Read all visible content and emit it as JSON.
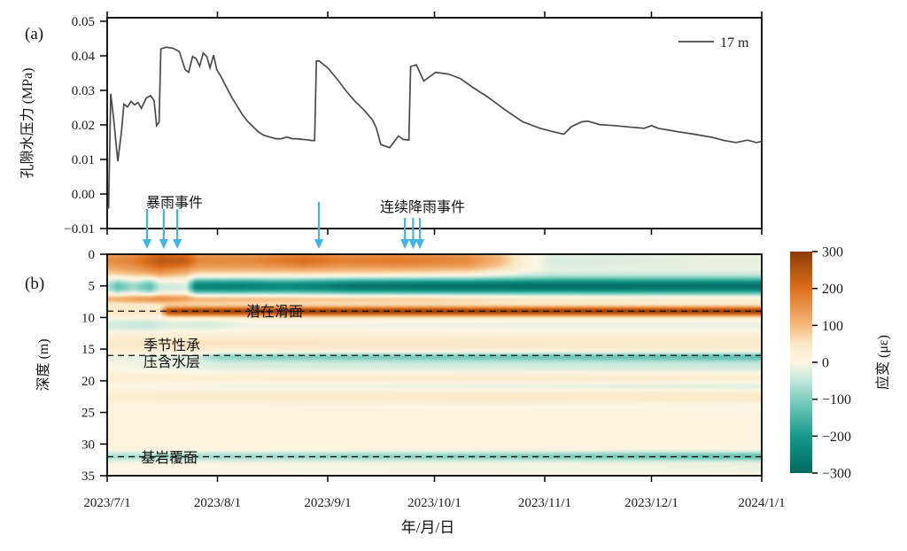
{
  "figure": {
    "background": "#ffffff"
  },
  "panel_a": {
    "label": "(a)",
    "ylabel": "孔隙水压力 (MPa)",
    "ylim": [
      -0.01,
      0.05
    ],
    "yticks": [
      {
        "v": 0.05,
        "label": "0.05"
      },
      {
        "v": 0.04,
        "label": "0.04"
      },
      {
        "v": 0.03,
        "label": "0.03"
      },
      {
        "v": 0.02,
        "label": "0.02"
      },
      {
        "v": 0.01,
        "label": "0.01"
      },
      {
        "v": 0.0,
        "label": "0.00"
      },
      {
        "v": -0.01,
        "label": "−0.01"
      }
    ],
    "legend": {
      "series_label": "17 m",
      "line_color": "#4a4a4a"
    },
    "rain_events": {
      "storm_label": "暴雨事件",
      "storm_arrow_days": [
        11.2,
        15.9,
        19.7
      ],
      "mid_arrow_days": [
        59.5
      ],
      "continuous_label": "连续降雨事件",
      "continuous_arrow_days": [
        83.7,
        86.0,
        87.9
      ],
      "arrow_color": "#3fb5e6"
    }
  },
  "panel_b": {
    "label": "(b)",
    "ylabel": "深度 (m)",
    "ylim_m": [
      0,
      35
    ],
    "yticks": [
      {
        "v": 0,
        "label": "0"
      },
      {
        "v": 5,
        "label": "5"
      },
      {
        "v": 10,
        "label": "10"
      },
      {
        "v": 15,
        "label": "15"
      },
      {
        "v": 20,
        "label": "20"
      },
      {
        "v": 25,
        "label": "25"
      },
      {
        "v": 30,
        "label": "30"
      },
      {
        "v": 35,
        "label": "35"
      }
    ],
    "markers": [
      {
        "depth_m": 9,
        "label": "潜在滑面"
      },
      {
        "depth_m": 16,
        "label_line1": "季节性承",
        "label_line2": "压含水层"
      },
      {
        "depth_m": 32,
        "label": "基岩覆面"
      }
    ]
  },
  "xaxis": {
    "label": "年/月/日",
    "ticks": [
      {
        "day": 0,
        "label": "2023/7/1"
      },
      {
        "day": 31,
        "label": "2023/8/1"
      },
      {
        "day": 62,
        "label": "2023/9/1"
      },
      {
        "day": 92,
        "label": "2023/10/1"
      },
      {
        "day": 123,
        "label": "2023/11/1"
      },
      {
        "day": 153,
        "label": "2023/12/1"
      },
      {
        "day": 184,
        "label": "2024/1/1"
      }
    ]
  },
  "colorbar": {
    "label": "应变 (με)",
    "ticks": [
      {
        "v": 300,
        "label": "300"
      },
      {
        "v": 200,
        "label": "200"
      },
      {
        "v": 100,
        "label": "100"
      },
      {
        "v": 0,
        "label": "0"
      },
      {
        "v": -100,
        "label": "−100"
      },
      {
        "v": -200,
        "label": "−200"
      },
      {
        "v": -300,
        "label": "−300"
      }
    ]
  },
  "chart_data": [
    {
      "type": "line",
      "title": "",
      "xlabel": "年/月/日",
      "ylabel": "孔隙水压力 (MPa)",
      "ylim": [
        -0.01,
        0.05
      ],
      "x_unit": "days since 2023/7/1",
      "x_range": [
        0,
        184
      ],
      "series": [
        {
          "name": "17 m",
          "color": "#4a4a4a",
          "points": [
            [
              0,
              -0.004
            ],
            [
              0.4,
              -0.004
            ],
            [
              1,
              0.029
            ],
            [
              1.8,
              0.022
            ],
            [
              3,
              0.0095
            ],
            [
              4,
              0.018
            ],
            [
              4.7,
              0.026
            ],
            [
              5.7,
              0.0252
            ],
            [
              6.7,
              0.0268
            ],
            [
              7.7,
              0.0258
            ],
            [
              8.7,
              0.0265
            ],
            [
              9.6,
              0.0248
            ],
            [
              11,
              0.0278
            ],
            [
              12.2,
              0.0285
            ],
            [
              13.2,
              0.027
            ],
            [
              13.9,
              0.0198
            ],
            [
              14.6,
              0.0208
            ],
            [
              15.1,
              0.042
            ],
            [
              16.6,
              0.0425
            ],
            [
              18.5,
              0.0422
            ],
            [
              20.3,
              0.0412
            ],
            [
              21.9,
              0.036
            ],
            [
              22.9,
              0.0352
            ],
            [
              24,
              0.0398
            ],
            [
              25,
              0.0392
            ],
            [
              26,
              0.037
            ],
            [
              27,
              0.0408
            ],
            [
              28,
              0.0398
            ],
            [
              28.9,
              0.0365
            ],
            [
              29.9,
              0.0402
            ],
            [
              30.8,
              0.036
            ],
            [
              32,
              0.034
            ],
            [
              33.5,
              0.031
            ],
            [
              35,
              0.028
            ],
            [
              36.5,
              0.0255
            ],
            [
              38,
              0.023
            ],
            [
              39.5,
              0.021
            ],
            [
              41,
              0.0195
            ],
            [
              42.5,
              0.018
            ],
            [
              44,
              0.017
            ],
            [
              45.7,
              0.0165
            ],
            [
              47.5,
              0.016
            ],
            [
              49,
              0.016
            ],
            [
              50.5,
              0.0165
            ],
            [
              52,
              0.016
            ],
            [
              53.4,
              0.016
            ],
            [
              54.9,
              0.0158
            ],
            [
              56.4,
              0.0157
            ],
            [
              57.4,
              0.0155
            ],
            [
              58.3,
              0.0155
            ],
            [
              58.8,
              0.0385
            ],
            [
              59.6,
              0.0385
            ],
            [
              62.1,
              0.0364
            ],
            [
              64.6,
              0.0333
            ],
            [
              67.1,
              0.0299
            ],
            [
              69.6,
              0.0269
            ],
            [
              72.1,
              0.0244
            ],
            [
              74.6,
              0.0214
            ],
            [
              75.7,
              0.019
            ],
            [
              76.9,
              0.0143
            ],
            [
              79.4,
              0.0134
            ],
            [
              81.9,
              0.0168
            ],
            [
              83.2,
              0.0158
            ],
            [
              84.8,
              0.0156
            ],
            [
              85.3,
              0.0369
            ],
            [
              86.9,
              0.0374
            ],
            [
              89,
              0.0327
            ],
            [
              92.3,
              0.0352
            ],
            [
              96,
              0.0347
            ],
            [
              99.3,
              0.0334
            ],
            [
              102.7,
              0.0309
            ],
            [
              106.8,
              0.0282
            ],
            [
              111.8,
              0.0244
            ],
            [
              116.8,
              0.0209
            ],
            [
              121.8,
              0.019
            ],
            [
              125.1,
              0.0181
            ],
            [
              128.4,
              0.0173
            ],
            [
              130.5,
              0.0195
            ],
            [
              133.4,
              0.0209
            ],
            [
              135.1,
              0.0211
            ],
            [
              138.4,
              0.0201
            ],
            [
              142.6,
              0.0198
            ],
            [
              146.7,
              0.0194
            ],
            [
              150.9,
              0.019
            ],
            [
              153,
              0.0198
            ],
            [
              155,
              0.019
            ],
            [
              160,
              0.0181
            ],
            [
              165,
              0.0173
            ],
            [
              170,
              0.0164
            ],
            [
              173.4,
              0.0155
            ],
            [
              176.7,
              0.0149
            ],
            [
              180,
              0.0156
            ],
            [
              182.5,
              0.0149
            ],
            [
              184,
              0.0152
            ]
          ]
        }
      ]
    },
    {
      "type": "heatmap",
      "xlabel": "年/月/日",
      "ylabel": "深度 (m)",
      "zlabel": "应变 (με)",
      "x_range_days": [
        0,
        184
      ],
      "depth_range_m": [
        0,
        35
      ],
      "zlim_ue": [
        -300,
        300
      ],
      "base_strain_ue": 12,
      "colormap_stops": [
        [
          -300,
          "#00695d"
        ],
        [
          -200,
          "#16998a"
        ],
        [
          -100,
          "#7fcebf"
        ],
        [
          -50,
          "#c0e7db"
        ],
        [
          0,
          "#fdf6e4"
        ],
        [
          50,
          "#fae9c8"
        ],
        [
          100,
          "#f5b97c"
        ],
        [
          200,
          "#dd6f1d"
        ],
        [
          300,
          "#8b3a08"
        ]
      ],
      "bands": [
        {
          "depth_m": 0.8,
          "sigma_m": 1.25,
          "amp_ue_keyframes": [
            [
              0,
              140
            ],
            [
              0.04,
              160
            ],
            [
              0.08,
              225
            ],
            [
              0.12,
              215
            ],
            [
              0.14,
              150
            ],
            [
              0.22,
              150
            ],
            [
              0.3,
              185
            ],
            [
              0.36,
              160
            ],
            [
              0.44,
              170
            ],
            [
              0.55,
              150
            ],
            [
              0.6,
              90
            ],
            [
              0.64,
              5
            ],
            [
              0.68,
              -40
            ],
            [
              0.8,
              -35
            ],
            [
              1,
              -28
            ]
          ]
        },
        {
          "depth_m": 2.9,
          "sigma_m": 0.9,
          "amp_ue_keyframes": [
            [
              0,
              40
            ],
            [
              0.08,
              80
            ],
            [
              0.13,
              40
            ],
            [
              0.4,
              35
            ],
            [
              0.55,
              25
            ],
            [
              0.63,
              0
            ],
            [
              0.68,
              -12
            ],
            [
              1,
              -12
            ]
          ]
        },
        {
          "depth_m": 5.0,
          "sigma_m": 0.95,
          "amp_ue_keyframes": [
            [
              0,
              -70
            ],
            [
              0.015,
              -140
            ],
            [
              0.04,
              -90
            ],
            [
              0.065,
              -150
            ],
            [
              0.08,
              -60
            ],
            [
              0.12,
              -45
            ],
            [
              0.135,
              -255
            ],
            [
              0.2,
              -265
            ],
            [
              0.27,
              -245
            ],
            [
              0.33,
              -265
            ],
            [
              0.38,
              -290
            ],
            [
              0.5,
              -295
            ],
            [
              0.75,
              -295
            ],
            [
              1,
              -290
            ]
          ]
        },
        {
          "depth_m": 7.0,
          "sigma_m": 0.55,
          "amp_ue_keyframes": [
            [
              0,
              100
            ],
            [
              0.08,
              150
            ],
            [
              0.13,
              115
            ],
            [
              0.3,
              95
            ],
            [
              0.5,
              85
            ],
            [
              0.65,
              55
            ],
            [
              0.8,
              45
            ],
            [
              1,
              40
            ]
          ]
        },
        {
          "depth_m": 9.0,
          "sigma_m": 0.55,
          "amp_ue_keyframes": [
            [
              0,
              40
            ],
            [
              0.08,
              45
            ],
            [
              0.093,
              250
            ],
            [
              0.12,
              265
            ],
            [
              0.3,
              270
            ],
            [
              1,
              270
            ]
          ]
        },
        {
          "depth_m": 11.2,
          "sigma_m": 0.8,
          "amp_ue_keyframes": [
            [
              0,
              -45
            ],
            [
              0.06,
              -60
            ],
            [
              0.1,
              -35
            ],
            [
              0.15,
              -45
            ],
            [
              0.22,
              -20
            ],
            [
              0.35,
              -20
            ],
            [
              0.6,
              -25
            ],
            [
              1,
              -28
            ]
          ]
        },
        {
          "depth_m": 14.0,
          "sigma_m": 1.0,
          "amp_ue_keyframes": [
            [
              0,
              30
            ],
            [
              0.15,
              45
            ],
            [
              0.35,
              40
            ],
            [
              0.6,
              35
            ],
            [
              1,
              30
            ]
          ]
        },
        {
          "depth_m": 16.2,
          "sigma_m": 0.5,
          "amp_ue_keyframes": [
            [
              0,
              -20
            ],
            [
              0.13,
              -30
            ],
            [
              0.17,
              -90
            ],
            [
              0.3,
              -100
            ],
            [
              0.6,
              -110
            ],
            [
              1,
              -125
            ]
          ]
        },
        {
          "depth_m": 17.6,
          "sigma_m": 0.9,
          "amp_ue_keyframes": [
            [
              0,
              -15
            ],
            [
              0.2,
              -40
            ],
            [
              0.5,
              -45
            ],
            [
              1,
              -52
            ]
          ]
        },
        {
          "depth_m": 19.6,
          "sigma_m": 0.6,
          "amp_ue_keyframes": [
            [
              0,
              15
            ],
            [
              0.3,
              30
            ],
            [
              0.6,
              35
            ],
            [
              1,
              30
            ]
          ]
        },
        {
          "depth_m": 20.9,
          "sigma_m": 0.6,
          "amp_ue_keyframes": [
            [
              0,
              -15
            ],
            [
              0.3,
              -35
            ],
            [
              0.7,
              -40
            ],
            [
              1,
              -45
            ]
          ]
        },
        {
          "depth_m": 22.5,
          "sigma_m": 0.9,
          "amp_ue_keyframes": [
            [
              0,
              18
            ],
            [
              0.3,
              35
            ],
            [
              0.6,
              40
            ],
            [
              1,
              38
            ]
          ]
        },
        {
          "depth_m": 24.1,
          "sigma_m": 0.5,
          "amp_ue_keyframes": [
            [
              0,
              -8
            ],
            [
              0.5,
              -18
            ],
            [
              1,
              -22
            ]
          ]
        },
        {
          "depth_m": 32.0,
          "sigma_m": 0.55,
          "amp_ue_keyframes": [
            [
              0,
              -75
            ],
            [
              0.3,
              -90
            ],
            [
              0.7,
              -110
            ],
            [
              1,
              -135
            ]
          ]
        },
        {
          "depth_m": 34.0,
          "sigma_m": 0.8,
          "amp_ue_keyframes": [
            [
              0,
              -12
            ],
            [
              0.5,
              -18
            ],
            [
              1,
              -24
            ]
          ]
        }
      ]
    }
  ]
}
